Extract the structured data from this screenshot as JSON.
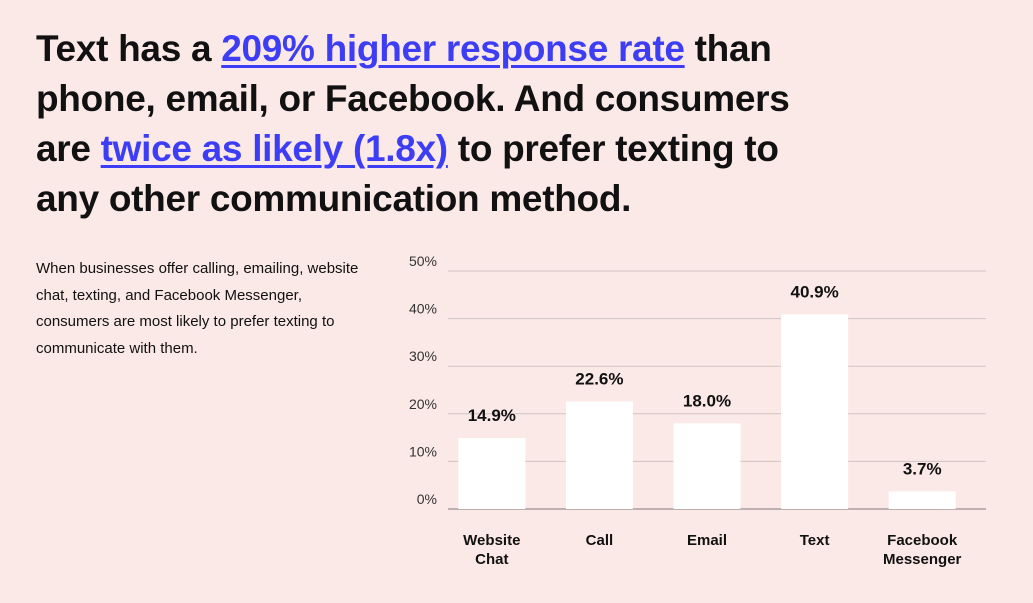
{
  "headline": {
    "part1": "Text has a ",
    "link1": "209% higher response rate",
    "part2": " than phone, email, or Facebook. And consumers are ",
    "link2": "twice as likely (1.8x)",
    "part3": " to prefer texting to any other communication method."
  },
  "description": "When businesses offer calling, emailing, website chat, texting, and Facebook Messenger, consumers are most likely to prefer texting to communicate with them.",
  "colors": {
    "background": "#fbe9e7",
    "bar": "#ffffff",
    "link": "#3d3df5",
    "grid": "#cfc3c3"
  },
  "chart_data": {
    "type": "bar",
    "categories": [
      [
        "Website",
        "Chat"
      ],
      [
        "Call"
      ],
      [
        "Email"
      ],
      [
        "Text"
      ],
      [
        "Facebook",
        "Messenger"
      ]
    ],
    "values": [
      14.9,
      22.6,
      18.0,
      40.9,
      3.7
    ],
    "value_labels": [
      "14.9%",
      "22.6%",
      "18.0%",
      "40.9%",
      "3.7%"
    ],
    "yticks": [
      "0%",
      "10%",
      "20%",
      "30%",
      "40%",
      "50%"
    ],
    "ylim": [
      0,
      50
    ],
    "grid": true,
    "legend": "none",
    "title": "",
    "xlabel": "",
    "ylabel": ""
  }
}
